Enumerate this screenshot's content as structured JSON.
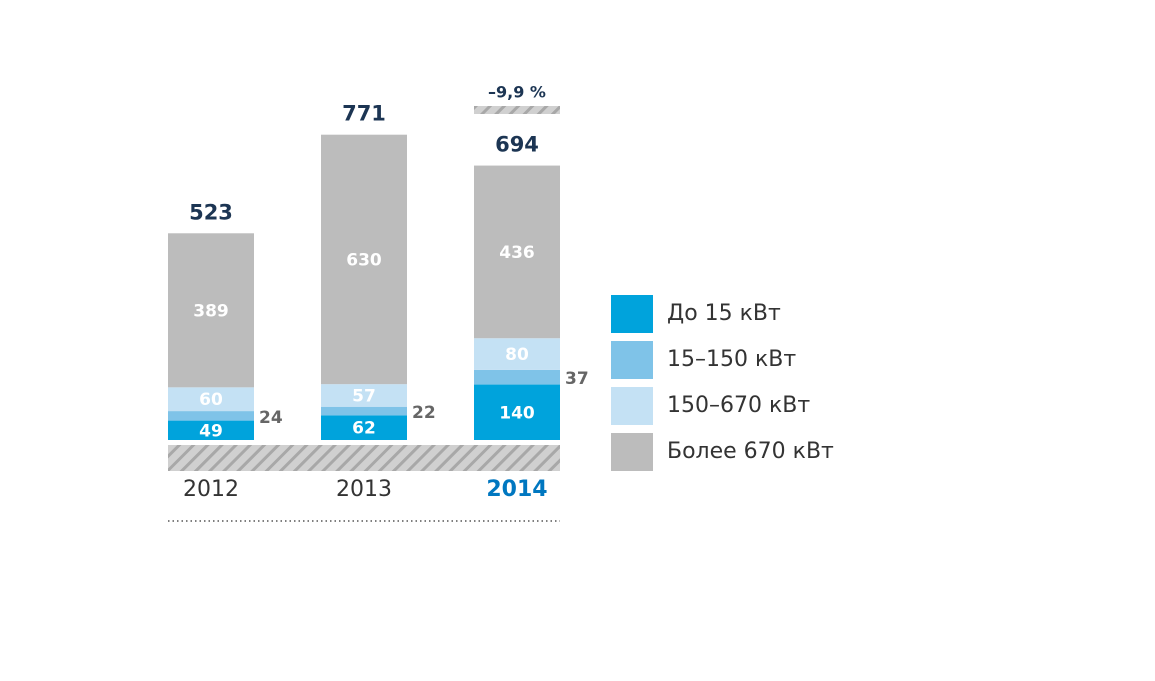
{
  "chart_data": {
    "type": "stacked_bar",
    "categories": [
      "2012",
      "2013",
      "2014"
    ],
    "series": [
      {
        "name": "До 15 кВт",
        "color": "#00a3dc",
        "values": [
          49,
          62,
          140
        ]
      },
      {
        "name": "15–150 кВт",
        "color": "#7fc3e8",
        "values": [
          24,
          22,
          37
        ]
      },
      {
        "name": "150–670 кВт",
        "color": "#c4e1f4",
        "values": [
          60,
          57,
          80
        ]
      },
      {
        "name": "Более 670 кВт",
        "color": "#bcbcbc",
        "values": [
          389,
          630,
          436
        ]
      }
    ],
    "totals": [
      523,
      771,
      694
    ],
    "annotation": "–9,9 %"
  }
}
